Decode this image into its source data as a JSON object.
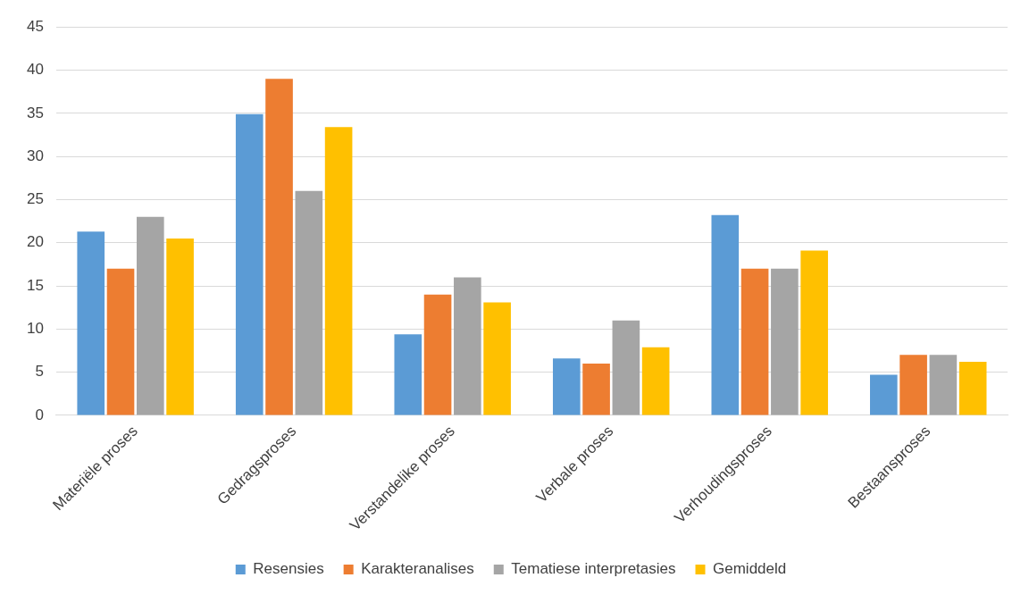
{
  "chart_data": {
    "type": "bar",
    "categories": [
      "Materiële proses",
      "Gedragsproses",
      "Verstandelike proses",
      "Verbale proses",
      "Verhoudingsproses",
      "Bestaansproses"
    ],
    "series": [
      {
        "name": "Resensies",
        "color": "#5b9bd5",
        "values": [
          21.3,
          34.9,
          9.4,
          6.6,
          23.2,
          4.7
        ]
      },
      {
        "name": "Karakteranalises",
        "color": "#ed7d31",
        "values": [
          17,
          39,
          14,
          6,
          17,
          7
        ]
      },
      {
        "name": "Tematiese interpretasies",
        "color": "#a5a5a5",
        "values": [
          23,
          26,
          16,
          11,
          17,
          7
        ]
      },
      {
        "name": "Gemiddeld",
        "color": "#ffc000",
        "values": [
          20.5,
          33.4,
          13.1,
          7.9,
          19.1,
          6.2
        ]
      }
    ],
    "ylim": [
      0,
      45
    ],
    "yticks": [
      0,
      5,
      10,
      15,
      20,
      25,
      30,
      35,
      40,
      45
    ],
    "grid": "y",
    "legend": "bottom"
  }
}
